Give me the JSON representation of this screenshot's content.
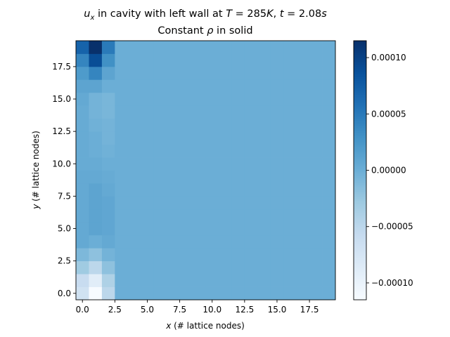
{
  "chart_data": {
    "type": "heatmap",
    "title_line1": "u_x in cavity with left wall at T = 285K, t = 2.08s",
    "title_var": "u",
    "title_sub": "x",
    "title_mid": " in cavity with left wall at ",
    "title_T": "T",
    "title_T_val": " = 285",
    "title_K": "K",
    "title_comma": ", ",
    "title_t": "t",
    "title_t_val": " = 2.08",
    "title_s": "s",
    "title_line2_pre": "Constant ",
    "title_line2_rho": "ρ",
    "title_line2_post": " in solid",
    "xlabel_var": "x",
    "xlabel_rest": " (# lattice nodes)",
    "ylabel_var": "y",
    "ylabel_rest": " (# lattice nodes)",
    "xlim": [
      -0.5,
      19.5
    ],
    "ylim": [
      -0.5,
      19.5
    ],
    "xticks": [
      0.0,
      2.5,
      5.0,
      7.5,
      10.0,
      12.5,
      15.0,
      17.5
    ],
    "xtick_labels": [
      "0.0",
      "2.5",
      "5.0",
      "7.5",
      "10.0",
      "12.5",
      "15.0",
      "17.5"
    ],
    "yticks": [
      0.0,
      2.5,
      5.0,
      7.5,
      10.0,
      12.5,
      15.0,
      17.5
    ],
    "ytick_labels": [
      "0.0",
      "2.5",
      "5.0",
      "7.5",
      "10.0",
      "12.5",
      "15.0",
      "17.5"
    ],
    "colormap": "Blues",
    "vmin": -0.000115,
    "vmax": 0.000115,
    "colorbar_ticks": [
      0.0001,
      5e-05,
      0.0,
      -5e-05,
      -0.0001
    ],
    "colorbar_tick_labels": [
      "0.00010",
      "0.00005",
      "0.00000",
      "−0.00005",
      "−0.00010"
    ],
    "grid_size": [
      20,
      20
    ],
    "rest_value": 0.0,
    "columns_note_values": {
      "col0": [
        -7e-05,
        -6e-05,
        -3e-05,
        -1e-05,
        5e-06,
        5e-06,
        5e-06,
        5e-06,
        5e-06,
        5e-06,
        3e-06,
        3e-06,
        3e-06,
        3e-06,
        3e-06,
        5e-06,
        1e-05,
        2e-05,
        4e-05,
        7e-05
      ],
      "col1": [
        -0.000115,
        -9e-05,
        -5e-05,
        -2e-05,
        0.0,
        1e-05,
        1e-05,
        1e-05,
        1e-05,
        5e-06,
        3e-06,
        0.0,
        0.0,
        -3e-06,
        -5e-06,
        -5e-06,
        1e-05,
        4e-05,
        9e-05,
        0.000115
      ],
      "col2": [
        -5e-05,
        -4e-05,
        -2e-05,
        -5e-06,
        5e-06,
        8e-06,
        8e-06,
        8e-06,
        5e-06,
        3e-06,
        0.0,
        -3e-06,
        -5e-06,
        -5e-06,
        -8e-06,
        -8e-06,
        0.0,
        1e-05,
        3e-05,
        5e-05
      ]
    }
  }
}
